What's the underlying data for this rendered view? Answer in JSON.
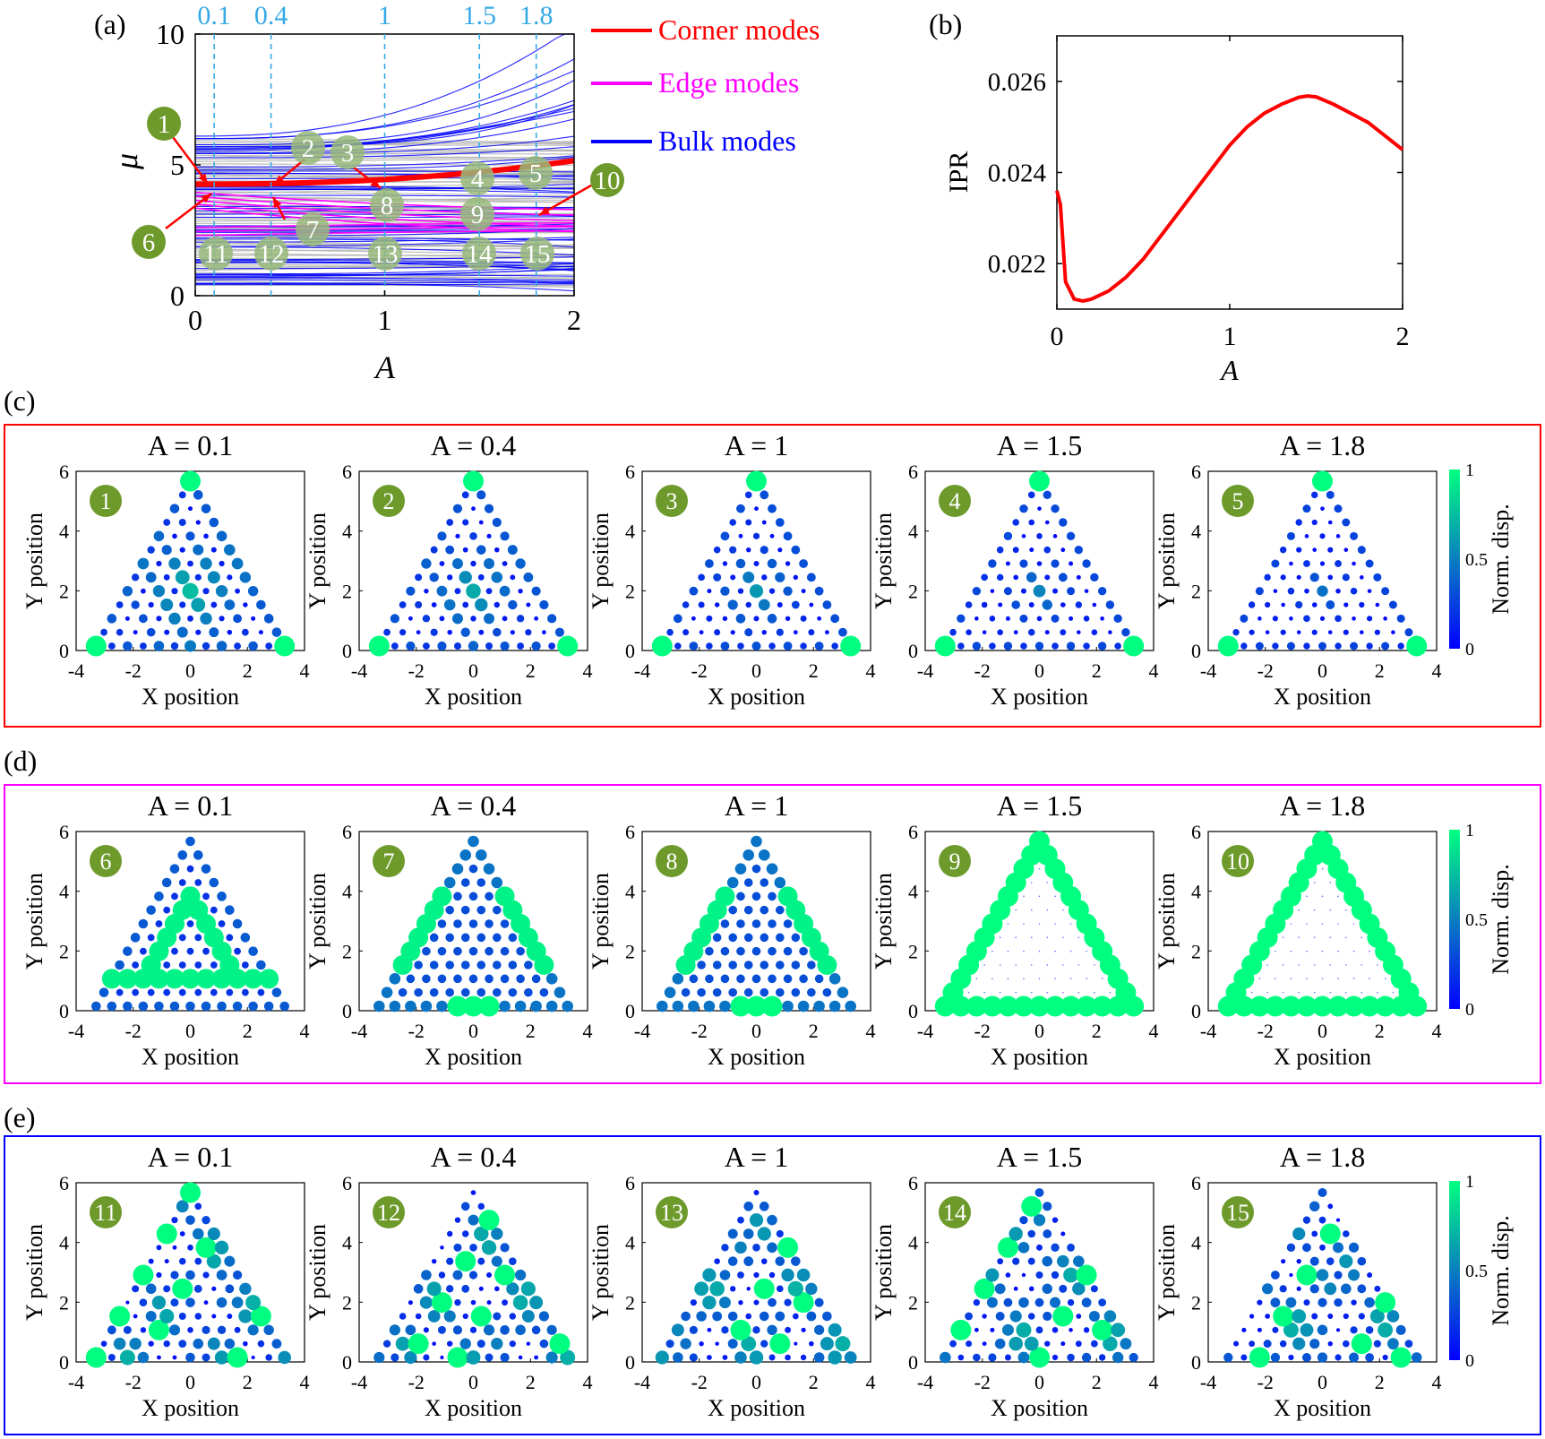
{
  "colors": {
    "corner": "#ff0000",
    "edge": "#ff00ff",
    "bulk": "#0000ff",
    "gray": "#b4b4b4",
    "marker": "#6e9a2c",
    "marker_light": "#98b87a",
    "dashed": "#35a9e6",
    "colormap_low": "#0000ff",
    "colormap_high": "#00ff80"
  },
  "panel_a": {
    "label": "(a)",
    "type": "line",
    "xlabel": "A",
    "ylabel": "μ",
    "xlim": [
      0,
      2
    ],
    "ylim": [
      0,
      10
    ],
    "xticks": [
      0,
      1,
      2
    ],
    "yticks": [
      0,
      5,
      10
    ],
    "top_ticks": [
      "0.1",
      "0.4",
      "1",
      "1.5",
      "1.8"
    ],
    "top_tick_values": [
      0.1,
      0.4,
      1,
      1.5,
      1.8
    ],
    "legend": [
      "Corner modes",
      "Edge modes",
      "Bulk modes"
    ],
    "legend_position": "outside-right",
    "markers": [
      "1",
      "2",
      "3",
      "4",
      "5",
      "6",
      "7",
      "8",
      "9",
      "10",
      "11",
      "12",
      "13",
      "14",
      "15"
    ]
  },
  "panel_b": {
    "label": "(b)",
    "xlabel": "A",
    "ylabel": "IPR",
    "xticks": [
      "0",
      "1",
      "2"
    ],
    "yticks": [
      "0.022",
      "0.024",
      "0.026"
    ]
  },
  "row_labels": [
    "(c)",
    "(d)",
    "(e)"
  ],
  "row_titles": [
    "A = 0.1",
    "A = 0.4",
    "A = 1",
    "A = 1.5",
    "A = 1.8"
  ],
  "row_numbers": [
    [
      "1",
      "2",
      "3",
      "4",
      "5"
    ],
    [
      "6",
      "7",
      "8",
      "9",
      "10"
    ],
    [
      "11",
      "12",
      "13",
      "14",
      "15"
    ]
  ],
  "small_axes": {
    "xlabel": "X position",
    "ylabel": "Y position",
    "xticks": [
      "-4",
      "-2",
      "0",
      "2",
      "4"
    ],
    "yticks": [
      "0",
      "2",
      "4",
      "6"
    ]
  },
  "colorbar": {
    "label": "Norm. disp.",
    "ticks": [
      "0",
      "0.5",
      "1"
    ]
  },
  "chart_data": [
    {
      "type": "line",
      "panel": "(a)",
      "xlabel": "A",
      "ylabel": "μ",
      "xlim": [
        0,
        2
      ],
      "ylim": [
        0,
        10
      ],
      "series": [
        {
          "name": "Corner modes",
          "x": [
            0,
            0.1,
            0.4,
            1,
            1.5,
            1.8,
            2
          ],
          "values": [
            4.3,
            4.3,
            4.3,
            4.35,
            4.7,
            5.0,
            5.2
          ]
        },
        {
          "name": "Edge modes",
          "x": [
            0,
            0.4,
            1,
            1.5,
            1.8,
            2
          ],
          "values": [
            3.9,
            3.6,
            3.3,
            3.0,
            2.9,
            2.95
          ]
        },
        {
          "name": "Bulk modes",
          "x": [
            0,
            0.5,
            1,
            1.5,
            2
          ],
          "values": [
            6.0,
            6.1,
            6.5,
            7.5,
            10.3
          ]
        }
      ]
    },
    {
      "type": "line",
      "panel": "(b)",
      "xlabel": "A",
      "ylabel": "IPR",
      "xlim": [
        0,
        2
      ],
      "ylim": [
        0.021,
        0.027
      ],
      "series": [
        {
          "x": [
            0,
            0.02,
            0.05,
            0.1,
            0.15,
            0.2,
            0.3,
            0.4,
            0.5,
            0.6,
            0.7,
            0.8,
            0.9,
            1.0,
            1.1,
            1.2,
            1.3,
            1.4,
            1.45,
            1.5,
            1.6,
            1.7,
            1.8,
            1.9,
            2.0
          ],
          "values": [
            0.0236,
            0.0233,
            0.0216,
            0.02122,
            0.02118,
            0.02122,
            0.0214,
            0.0217,
            0.0221,
            0.0226,
            0.0231,
            0.0236,
            0.0241,
            0.0246,
            0.025,
            0.0253,
            0.0255,
            0.02565,
            0.02568,
            0.02566,
            0.0255,
            0.0253,
            0.0251,
            0.0248,
            0.0245
          ]
        }
      ]
    },
    {
      "type": "scatter",
      "panel": "(c)",
      "description": "corner mode displacement maps",
      "xlim": [
        -4,
        4
      ],
      "ylim": [
        0,
        6
      ],
      "modes": [
        "1",
        "2",
        "3",
        "4",
        "5"
      ]
    },
    {
      "type": "scatter",
      "panel": "(d)",
      "description": "edge mode displacement maps",
      "xlim": [
        -4,
        4
      ],
      "ylim": [
        0,
        6
      ],
      "modes": [
        "6",
        "7",
        "8",
        "9",
        "10"
      ]
    },
    {
      "type": "scatter",
      "panel": "(e)",
      "description": "bulk mode displacement maps",
      "xlim": [
        -4,
        4
      ],
      "ylim": [
        0,
        6
      ],
      "modes": [
        "11",
        "12",
        "13",
        "14",
        "15"
      ]
    }
  ]
}
